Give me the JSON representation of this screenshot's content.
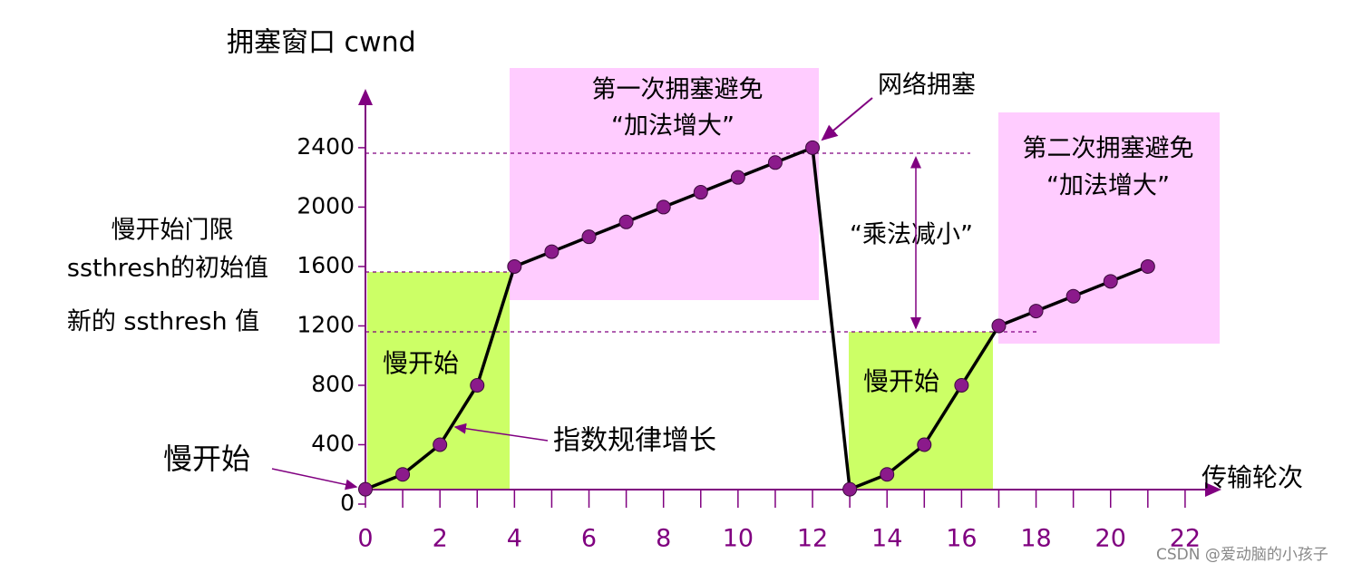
{
  "chart_data": {
    "type": "line",
    "y_label": "拥塞窗口 cwnd",
    "x_label": "传输轮次",
    "x": [
      0,
      1,
      2,
      3,
      4,
      5,
      6,
      7,
      8,
      9,
      10,
      11,
      12,
      13,
      14,
      15,
      16,
      17,
      18,
      19,
      20,
      21
    ],
    "values": [
      100,
      200,
      400,
      800,
      1600,
      1700,
      1800,
      1900,
      2000,
      2100,
      2200,
      2300,
      2400,
      100,
      200,
      400,
      800,
      1200,
      1300,
      1400,
      1500,
      1600
    ],
    "color": "#000000",
    "marker_color": "#8b1a8b",
    "axis_color": "#800080",
    "xlim": [
      0,
      23
    ],
    "ylim": [
      0,
      2800
    ],
    "xticks": [
      0,
      2,
      4,
      6,
      8,
      10,
      12,
      14,
      16,
      18,
      20,
      22
    ],
    "yticks": [
      0,
      400,
      800,
      1200,
      1600,
      2000,
      2400
    ],
    "annotations": [
      "慢开始门限",
      "ssthresh的初始值",
      "新的 ssthresh 值",
      "慢开始",
      "慢开始",
      "指数规律增长",
      "第一次拥塞避免",
      "“加法增大”",
      "网络拥塞",
      "“乘法减小”",
      "第二次拥塞避免",
      "“加法增大”",
      "慢开始"
    ],
    "watermark": "CSDN @爱动脑的小孩子"
  }
}
